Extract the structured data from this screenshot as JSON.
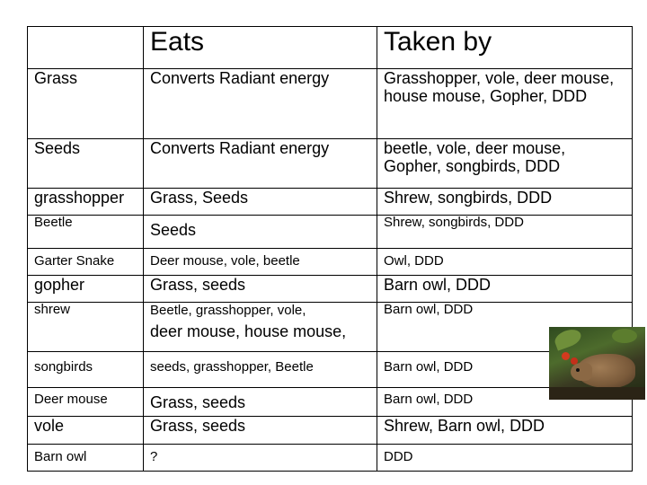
{
  "table": {
    "headers": [
      "",
      "Eats",
      "Taken by"
    ],
    "rows": [
      {
        "organism": "Grass",
        "eats": "Converts Radiant energy",
        "taken_by": "Grasshopper, vole, deer mouse, house mouse, Gopher, DDD"
      },
      {
        "organism": "Seeds",
        "eats": "Converts Radiant energy",
        "taken_by": "beetle, vole, deer mouse, Gopher, songbirds, DDD"
      },
      {
        "organism": "grasshopper",
        "eats": "Grass, Seeds",
        "taken_by": "Shrew, songbirds, DDD"
      },
      {
        "organism": "Beetle",
        "eats": "Seeds",
        "taken_by": "Shrew, songbirds, DDD"
      },
      {
        "organism": "Garter Snake",
        "eats": "Deer mouse, vole, beetle",
        "taken_by": "Owl, DDD"
      },
      {
        "organism": "gopher",
        "eats": "Grass, seeds",
        "taken_by": "Barn owl, DDD"
      },
      {
        "organism": "shrew",
        "eats_part1": "Beetle, grasshopper, vole,",
        "eats_part2": "deer mouse, house mouse,",
        "taken_by": "Barn owl, DDD"
      },
      {
        "organism": "songbirds",
        "eats": "seeds, grasshopper, Beetle",
        "taken_by": "Barn owl, DDD"
      },
      {
        "organism": "Deer mouse",
        "eats": "Grass, seeds",
        "taken_by": "Barn owl, DDD"
      },
      {
        "organism": "vole",
        "eats": "Grass, seeds",
        "taken_by": "Shrew, Barn owl, DDD"
      },
      {
        "organism": "Barn owl",
        "eats": "?",
        "taken_by": "DDD"
      }
    ]
  },
  "photo": {
    "icon": "vole-photo"
  }
}
